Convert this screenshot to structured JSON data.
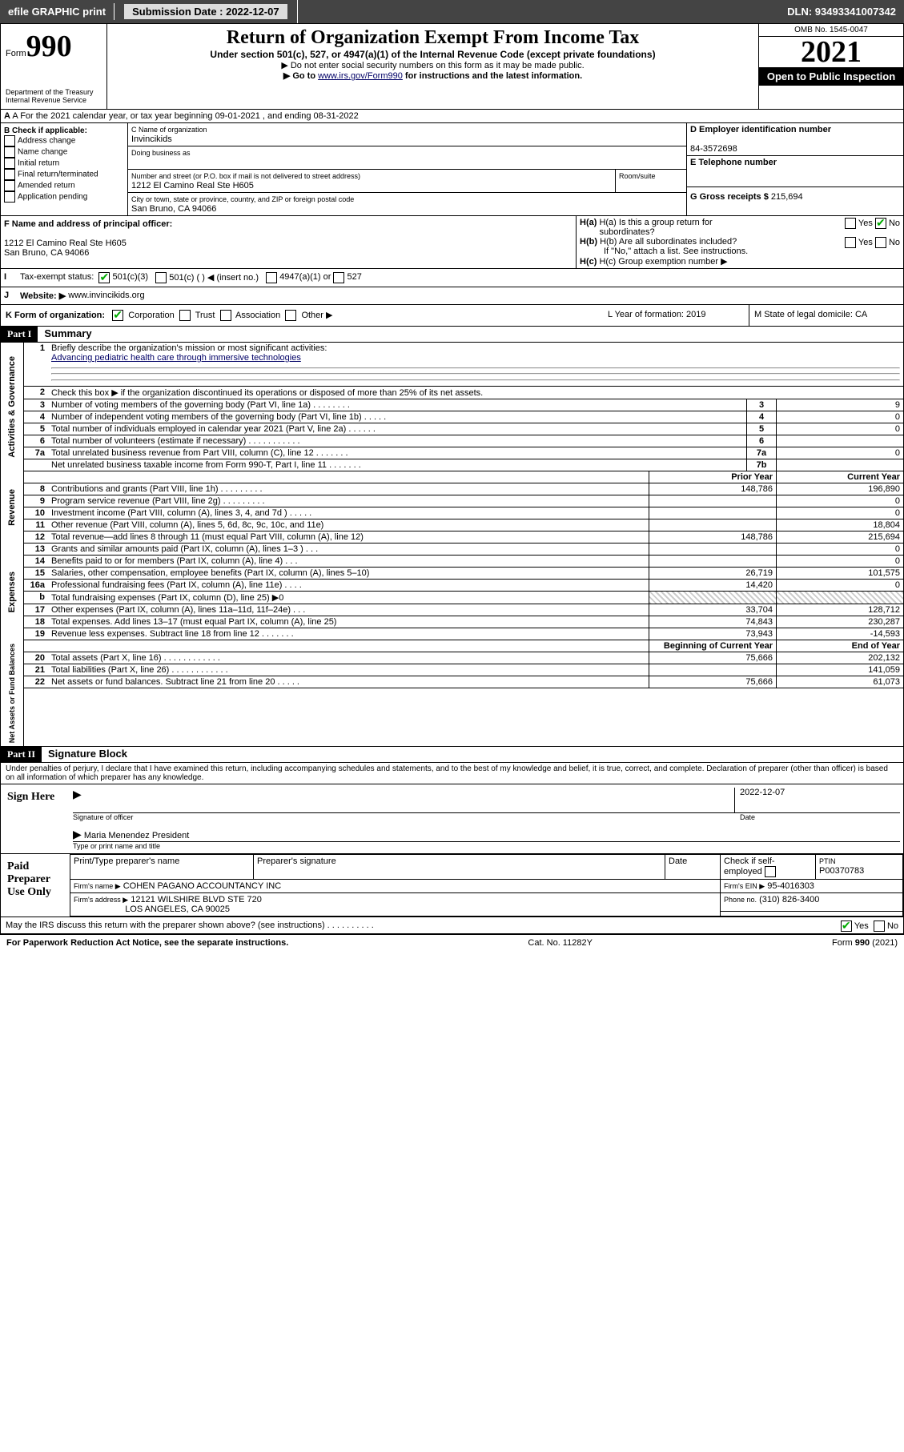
{
  "topbar": {
    "efile": "efile GRAPHIC print",
    "sub": "Submission Date : 2022-12-07",
    "dln": "DLN: 93493341007342"
  },
  "header": {
    "form": "Form",
    "num": "990",
    "title": "Return of Organization Exempt From Income Tax",
    "sub": "Under section 501(c), 527, or 4947(a)(1) of the Internal Revenue Code (except private foundations)",
    "l1": "▶ Do not enter social security numbers on this form as it may be made public.",
    "l2a": "▶ Go to ",
    "l2link": "www.irs.gov/Form990",
    "l2b": " for instructions and the latest information.",
    "dept": "Department of the Treasury",
    "irs": "Internal Revenue Service",
    "omb": "OMB No. 1545-0047",
    "year": "2021",
    "inspect": "Open to Public Inspection"
  },
  "A": "A For the 2021 calendar year, or tax year beginning 09-01-2021    , and ending 08-31-2022",
  "B": {
    "hdr": "B Check if applicable:",
    "items": [
      "Address change",
      "Name change",
      "Initial return",
      "Final return/terminated",
      "Amended return",
      "Application pending"
    ]
  },
  "C": {
    "lbl": "C Name of organization",
    "name": "Invincikids",
    "dba": "Doing business as",
    "addrlbl": "Number and street (or P.O. box if mail is not delivered to street address)",
    "room": "Room/suite",
    "addr": "1212 El Camino Real Ste H605",
    "citylbl": "City or town, state or province, country, and ZIP or foreign postal code",
    "city": "San Bruno, CA  94066"
  },
  "D": {
    "lbl": "D Employer identification number",
    "ein": "84-3572698"
  },
  "E": {
    "lbl": "E Telephone number",
    "val": ""
  },
  "G": {
    "lbl": "G Gross receipts $",
    "val": "215,694"
  },
  "F": {
    "lbl": "F Name and address of principal officer:",
    "l1": "1212 El Camino Real Ste H605",
    "l2": "San Bruno, CA  94066"
  },
  "H": {
    "a": "H(a)  Is this a group return for",
    "a2": "subordinates?",
    "b": "H(b)  Are all subordinates included?",
    "note": "If \"No,\" attach a list. See instructions.",
    "c": "H(c)  Group exemption number ▶",
    "yes": "Yes",
    "no": "No"
  },
  "I": {
    "lbl": "Tax-exempt status:",
    "o1": "501(c)(3)",
    "o2": "501(c) (   ) ◀ (insert no.)",
    "o3": "4947(a)(1) or",
    "o4": "527"
  },
  "J": {
    "lbl": "Website: ▶",
    "val": "www.invincikids.org"
  },
  "K": {
    "lbl": "K Form of organization:",
    "o": [
      "Corporation",
      "Trust",
      "Association",
      "Other ▶"
    ]
  },
  "L": "L Year of formation: 2019",
  "M": "M State of legal domicile: CA",
  "partI": {
    "hdr": "Part I",
    "title": "Summary",
    "l1": "Briefly describe the organization's mission or most significant activities:",
    "mission": "Advancing pediatric health care through immersive technologies",
    "l2": "Check this box ▶        if the organization discontinued its operations or disposed of more than 25% of its net assets.",
    "ag": [
      {
        "n": "3",
        "t": "Number of voting members of the governing body (Part VI, line 1a)   .     .     .     .     .     .     .     .",
        "b": "3",
        "v": "9"
      },
      {
        "n": "4",
        "t": "Number of independent voting members of the governing body (Part VI, line 1b)     .     .     .     .     .",
        "b": "4",
        "v": "0"
      },
      {
        "n": "5",
        "t": "Total number of individuals employed in calendar year 2021 (Part V, line 2a)     .     .     .     .     .     .",
        "b": "5",
        "v": "0"
      },
      {
        "n": "6",
        "t": "Total number of volunteers (estimate if necessary)     .     .     .     .     .     .     .     .     .     .     .",
        "b": "6",
        "v": ""
      },
      {
        "n": "7a",
        "t": "Total unrelated business revenue from Part VIII, column (C), line 12     .     .     .     .     .     .     .",
        "b": "7a",
        "v": "0"
      },
      {
        "n": "",
        "t": "Net unrelated business taxable income from Form 990-T, Part I, line 11     .     .     .     .     .     .     .",
        "b": "7b",
        "v": ""
      }
    ],
    "colhdr": {
      "py": "Prior Year",
      "cy": "Current Year",
      "bcy": "Beginning of Current Year",
      "eoy": "End of Year"
    },
    "rev": [
      {
        "n": "8",
        "t": "Contributions and grants (Part VIII, line 1h)     .     .     .     .     .     .     .     .     .",
        "c1": "148,786",
        "c2": "196,890"
      },
      {
        "n": "9",
        "t": "Program service revenue (Part VIII, line 2g)     .     .     .     .     .     .     .     .     .",
        "c1": "",
        "c2": "0"
      },
      {
        "n": "10",
        "t": "Investment income (Part VIII, column (A), lines 3, 4, and 7d )     .     .     .     .     .",
        "c1": "",
        "c2": "0"
      },
      {
        "n": "11",
        "t": "Other revenue (Part VIII, column (A), lines 5, 6d, 8c, 9c, 10c, and 11e)",
        "c1": "",
        "c2": "18,804"
      },
      {
        "n": "12",
        "t": "Total revenue—add lines 8 through 11 (must equal Part VIII, column (A), line 12)",
        "c1": "148,786",
        "c2": "215,694"
      }
    ],
    "exp": [
      {
        "n": "13",
        "t": "Grants and similar amounts paid (Part IX, column (A), lines 1–3 )     .     .     .",
        "c1": "",
        "c2": "0"
      },
      {
        "n": "14",
        "t": "Benefits paid to or for members (Part IX, column (A), line 4)     .     .     .",
        "c1": "",
        "c2": "0"
      },
      {
        "n": "15",
        "t": "Salaries, other compensation, employee benefits (Part IX, column (A), lines 5–10)",
        "c1": "26,719",
        "c2": "101,575"
      },
      {
        "n": "16a",
        "t": "Professional fundraising fees (Part IX, column (A), line 11e)     .     .     .     .",
        "c1": "14,420",
        "c2": "0"
      },
      {
        "n": "b",
        "t": "Total fundraising expenses (Part IX, column (D), line 25) ▶0",
        "hatch": true
      },
      {
        "n": "17",
        "t": "Other expenses (Part IX, column (A), lines 11a–11d, 11f–24e)     .      .     .",
        "c1": "33,704",
        "c2": "128,712"
      },
      {
        "n": "18",
        "t": "Total expenses. Add lines 13–17 (must equal Part IX, column (A), line 25)",
        "c1": "74,843",
        "c2": "230,287"
      },
      {
        "n": "19",
        "t": "Revenue less expenses. Subtract line 18 from line 12     .     .     .     .     .     .     .",
        "c1": "73,943",
        "c2": "-14,593"
      }
    ],
    "na": [
      {
        "n": "20",
        "t": "Total assets (Part X, line 16)     .     .     .     .     .     .     .     .     .     .     .     .",
        "c1": "75,666",
        "c2": "202,132"
      },
      {
        "n": "21",
        "t": "Total liabilities (Part X, line 26)     .     .     .     .     .     .     .     .     .     .     .     .",
        "c1": "",
        "c2": "141,059"
      },
      {
        "n": "22",
        "t": "Net assets or fund balances. Subtract line 21 from line 20     .     .     .     .     .",
        "c1": "75,666",
        "c2": "61,073"
      }
    ],
    "sides": {
      "ag": "Activities & Governance",
      "rev": "Revenue",
      "exp": "Expenses",
      "na": "Net Assets or Fund Balances"
    }
  },
  "partII": {
    "hdr": "Part II",
    "title": "Signature Block",
    "decl": "Under penalties of perjury, I declare that I have examined this return, including accompanying schedules and statements, and to the best of my knowledge and belief, it is true, correct, and complete. Declaration of preparer (other than officer) is based on all information of which preparer has any knowledge.",
    "sign": "Sign Here",
    "sigoff": "Signature of officer",
    "date": "Date",
    "dateval": "2022-12-07",
    "name": "Maria Menendez  President",
    "nametype": "Type or print name and title",
    "paid": "Paid Preparer Use Only",
    "prep": {
      "h1": "Print/Type preparer's name",
      "h2": "Preparer's signature",
      "h3": "Date",
      "h4": "Check        if self-employed",
      "h5": "PTIN",
      "ptin": "P00370783",
      "firm": "Firm's name     ▶",
      "firmname": "COHEN PAGANO ACCOUNTANCY INC",
      "ein": "Firm's EIN ▶",
      "einval": "95-4016303",
      "addr": "Firm's address ▶",
      "addrval": "12121 WILSHIRE BLVD STE 720",
      "city": "LOS ANGELES, CA  90025",
      "phone": "Phone no.",
      "phoneval": "(310) 826-3400"
    },
    "may": "May the IRS discuss this return with the preparer shown above? (see instructions)     .      .     .     .     .     .     .     .     .     ."
  },
  "footer": {
    "l": "For Paperwork Reduction Act Notice, see the separate instructions.",
    "c": "Cat. No. 11282Y",
    "r": "Form 990 (2021)"
  }
}
